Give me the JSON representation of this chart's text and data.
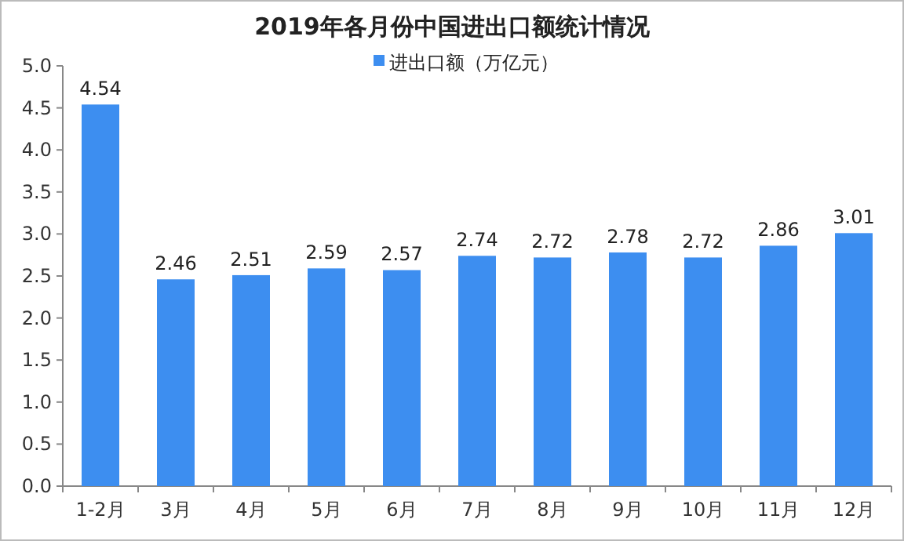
{
  "chart_data": {
    "type": "bar",
    "title": "2019年各月份中国进出口额统计情况",
    "categories": [
      "1-2月",
      "3月",
      "4月",
      "5月",
      "6月",
      "7月",
      "8月",
      "9月",
      "10月",
      "11月",
      "12月"
    ],
    "series": [
      {
        "name": "进出口额（万亿元）",
        "color": "#3d8ef0",
        "values": [
          4.54,
          2.46,
          2.51,
          2.59,
          2.57,
          2.74,
          2.72,
          2.78,
          2.72,
          2.86,
          3.01
        ]
      }
    ],
    "ylim": [
      0,
      5
    ],
    "yticks": [
      {
        "value": 0,
        "label": "0.0"
      },
      {
        "value": 0.5,
        "label": "0.5"
      },
      {
        "value": 1,
        "label": "1.0"
      },
      {
        "value": 1.5,
        "label": "1.5"
      },
      {
        "value": 2,
        "label": "2.0"
      },
      {
        "value": 2.5,
        "label": "2.5"
      },
      {
        "value": 3,
        "label": "3.0"
      },
      {
        "value": 3.5,
        "label": "3.5"
      },
      {
        "value": 4,
        "label": "4.0"
      },
      {
        "value": 4.5,
        "label": "4.5"
      },
      {
        "value": 5,
        "label": "5.0"
      }
    ],
    "data_labels": true,
    "legend": "top",
    "grid": false
  }
}
